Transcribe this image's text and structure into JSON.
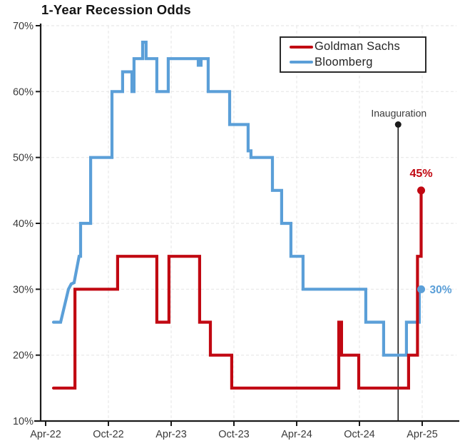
{
  "title": "1-Year Recession Odds",
  "legend": {
    "items": [
      {
        "label": "Goldman Sachs",
        "color": "#c10812"
      },
      {
        "label": "Bloomberg",
        "color": "#5b9fd8"
      }
    ]
  },
  "chart_data": {
    "type": "line",
    "style": "step",
    "title": "1-Year Recession Odds",
    "grid": "dashed-light",
    "grid_color": "#e8e8e8",
    "axis_color": "#1a1a1a",
    "label_color": "#3a3a3a",
    "legend_position": "top-right",
    "x_axis": {
      "unit": "months since Apr-2022",
      "xlim": [
        0,
        36.6
      ],
      "tick_months": [
        0,
        6,
        12,
        18,
        24,
        30,
        36
      ],
      "tick_labels": [
        "Apr-22",
        "Oct-22",
        "Apr-23",
        "Oct-23",
        "Apr-24",
        "Oct-24",
        "Apr-25"
      ],
      "gridline_months": [
        6,
        12,
        18,
        24,
        30,
        36
      ]
    },
    "y_axis": {
      "ylim": [
        10,
        70
      ],
      "tick_values": [
        10,
        20,
        30,
        40,
        50,
        60,
        70
      ],
      "tick_labels": [
        "10%",
        "20%",
        "30%",
        "40%",
        "50%",
        "60%",
        "70%"
      ],
      "gridline_values": [
        20,
        30,
        40,
        50,
        60,
        70
      ]
    },
    "series": [
      {
        "name": "Bloomberg",
        "color": "#5b9fd8",
        "end_dot": true,
        "end_value": 30,
        "end_label": {
          "text": "30%",
          "dx": 12,
          "dy": 5.5,
          "anchor": "start",
          "size": 15.5
        },
        "points": [
          [
            0.75,
            25
          ],
          [
            1.43,
            25
          ],
          [
            2.18,
            30
          ],
          [
            2.45,
            30.8
          ],
          [
            2.72,
            31
          ],
          [
            3.2,
            35
          ],
          [
            3.34,
            35
          ],
          [
            3.34,
            40
          ],
          [
            4.3,
            40
          ],
          [
            4.3,
            50
          ],
          [
            6.34,
            50
          ],
          [
            6.34,
            60
          ],
          [
            7.36,
            60
          ],
          [
            7.36,
            63
          ],
          [
            8.25,
            63
          ],
          [
            8.25,
            60
          ],
          [
            8.45,
            60
          ],
          [
            8.45,
            65
          ],
          [
            9.27,
            65
          ],
          [
            9.27,
            67.5
          ],
          [
            9.6,
            67.5
          ],
          [
            9.6,
            65
          ],
          [
            10.63,
            65
          ],
          [
            10.63,
            60
          ],
          [
            11.72,
            60
          ],
          [
            11.72,
            65
          ],
          [
            14.59,
            65
          ],
          [
            14.59,
            64
          ],
          [
            14.86,
            64
          ],
          [
            14.86,
            65
          ],
          [
            15.54,
            65
          ],
          [
            15.54,
            60
          ],
          [
            17.59,
            60
          ],
          [
            17.59,
            55
          ],
          [
            19.36,
            55
          ],
          [
            19.36,
            51
          ],
          [
            19.63,
            51
          ],
          [
            19.63,
            50
          ],
          [
            21.68,
            50
          ],
          [
            21.68,
            45
          ],
          [
            22.56,
            45
          ],
          [
            22.56,
            40
          ],
          [
            23.45,
            40
          ],
          [
            23.45,
            35
          ],
          [
            24.61,
            35
          ],
          [
            24.61,
            30
          ],
          [
            30.61,
            30
          ],
          [
            30.61,
            25
          ],
          [
            32.31,
            25
          ],
          [
            32.31,
            20
          ],
          [
            34.49,
            20
          ],
          [
            34.49,
            25
          ],
          [
            35.72,
            25
          ],
          [
            35.72,
            30
          ],
          [
            35.9,
            30
          ]
        ]
      },
      {
        "name": "Goldman Sachs",
        "color": "#c10812",
        "end_dot": true,
        "end_value": 45,
        "end_label": {
          "text": "45%",
          "dx": 0,
          "dy": -19,
          "anchor": "middle",
          "size": 16
        },
        "points": [
          [
            0.75,
            15
          ],
          [
            2.8,
            15
          ],
          [
            2.8,
            30
          ],
          [
            6.88,
            30
          ],
          [
            6.88,
            35
          ],
          [
            10.63,
            35
          ],
          [
            10.63,
            25
          ],
          [
            11.79,
            25
          ],
          [
            11.79,
            35
          ],
          [
            14.72,
            35
          ],
          [
            14.72,
            25
          ],
          [
            15.75,
            25
          ],
          [
            15.75,
            20
          ],
          [
            17.79,
            20
          ],
          [
            17.79,
            15
          ],
          [
            28.02,
            15
          ],
          [
            28.02,
            25
          ],
          [
            28.29,
            25
          ],
          [
            28.29,
            20
          ],
          [
            29.93,
            20
          ],
          [
            29.93,
            15
          ],
          [
            34.7,
            15
          ],
          [
            34.7,
            20
          ],
          [
            35.55,
            20
          ],
          [
            35.55,
            35
          ],
          [
            35.9,
            35
          ],
          [
            35.9,
            45
          ]
        ]
      }
    ],
    "annotations": [
      {
        "type": "vline-dot",
        "label": "Inauguration",
        "month": 33.7,
        "dot_value": 55
      }
    ]
  }
}
